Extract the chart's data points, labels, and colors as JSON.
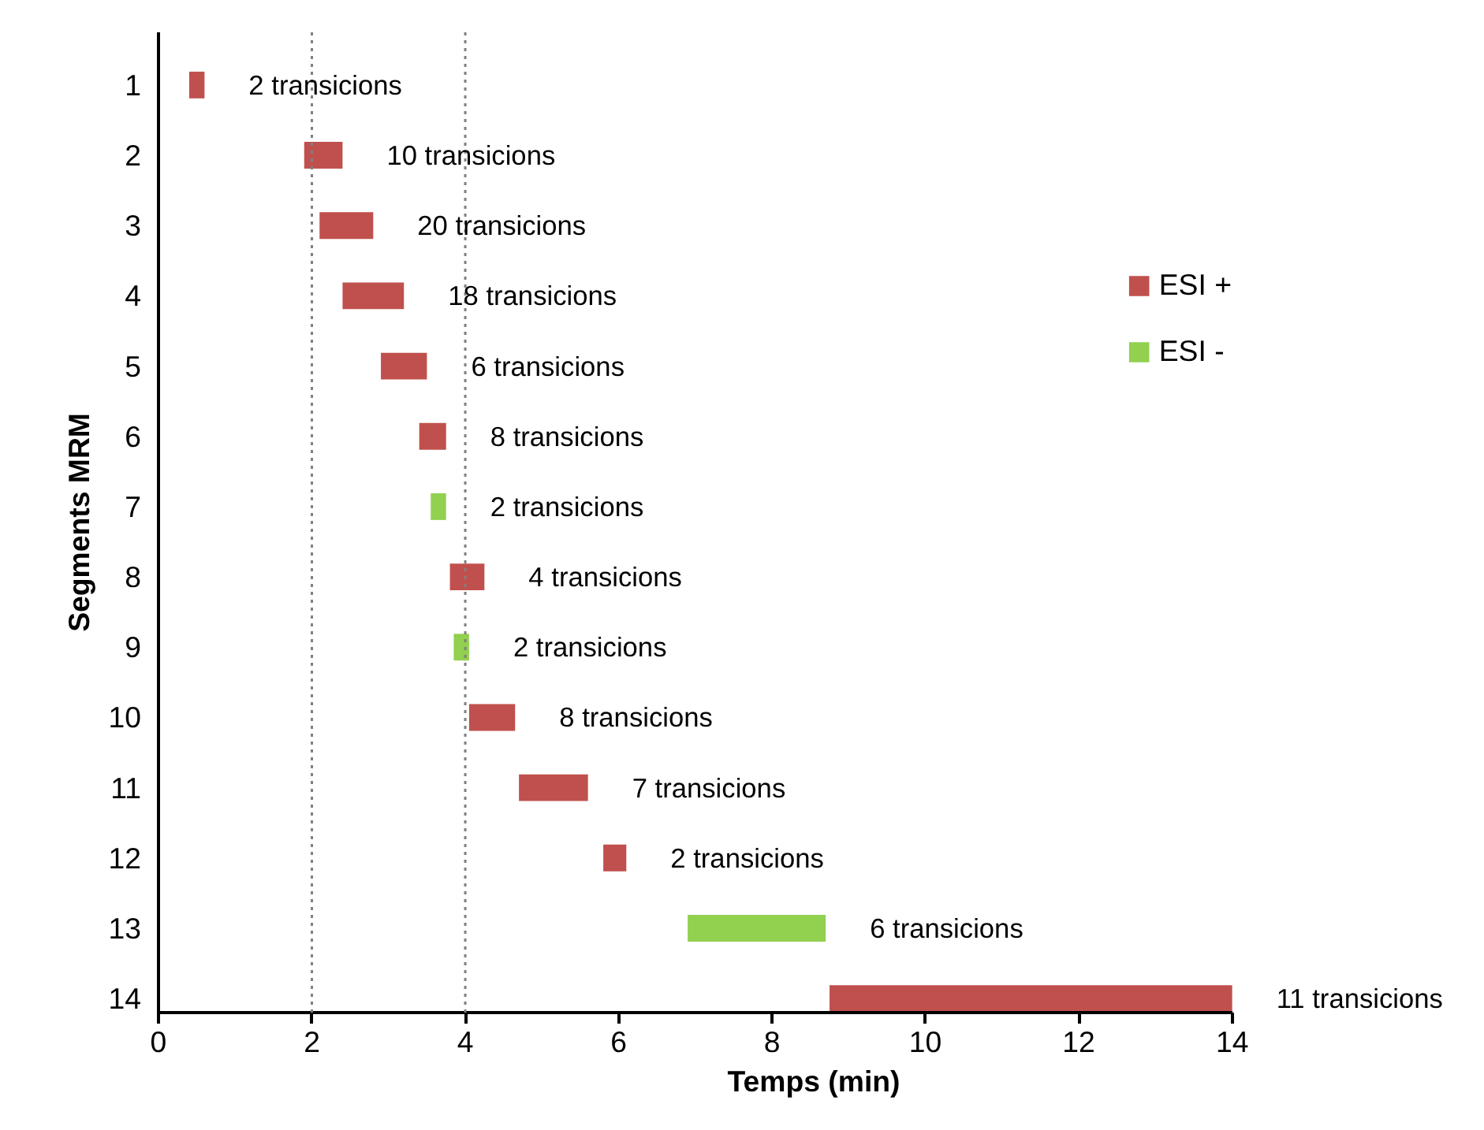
{
  "chart_data": {
    "type": "bar",
    "orientation": "horizontal",
    "xlabel": "Temps (min)",
    "ylabel": "Segments MRM",
    "categories": [
      "1",
      "2",
      "3",
      "4",
      "5",
      "6",
      "7",
      "8",
      "9",
      "10",
      "11",
      "12",
      "13",
      "14"
    ],
    "series": [
      {
        "name": "ESI +",
        "color": "#c0504d",
        "base": [
          0.4,
          1.9,
          2.1,
          2.4,
          2.9,
          3.4,
          null,
          3.8,
          null,
          4.05,
          4.7,
          5.8,
          null,
          8.75
        ],
        "values": [
          0.2,
          0.5,
          0.7,
          0.8,
          0.6,
          0.35,
          null,
          0.45,
          null,
          0.6,
          0.9,
          0.3,
          null,
          5.25
        ]
      },
      {
        "name": "ESI -",
        "color": "#92d050",
        "base": [
          null,
          null,
          null,
          null,
          null,
          null,
          3.55,
          null,
          3.85,
          null,
          null,
          null,
          6.9,
          null
        ],
        "values": [
          null,
          null,
          null,
          null,
          null,
          null,
          0.2,
          null,
          0.2,
          null,
          null,
          null,
          1.8,
          null
        ]
      }
    ],
    "xlim": [
      0,
      14
    ],
    "xticks": [
      0,
      2,
      4,
      6,
      8,
      10,
      12,
      14
    ],
    "grid": false,
    "legend": "top right",
    "ref_lines": [
      {
        "axis": "x",
        "value": 2,
        "color": "#808080",
        "line_style": "dotted"
      },
      {
        "axis": "x",
        "value": 4,
        "color": "#808080",
        "line_style": "dotted"
      }
    ],
    "annotations": [
      "2 transicions",
      "10 transicions",
      "20 transicions",
      "18 transicions",
      "6 transicions",
      "8 transicions",
      "2 transicions",
      "4 transicions",
      "2 transicions",
      "8 transicions",
      "7 transicions",
      "2 transicions",
      "6 transicions",
      "11 transicions"
    ]
  }
}
